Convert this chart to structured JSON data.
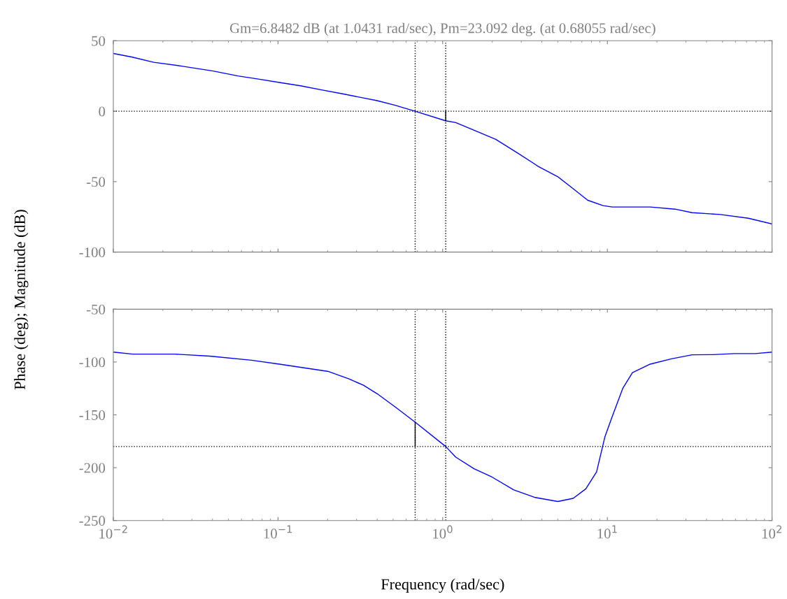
{
  "chart_data": [
    {
      "type": "line",
      "title": "Gm=6.8482 dB (at 1.0431 rad/sec), Pm=23.092 deg. (at 0.68055 rad/sec)",
      "ylabel": "Phase (deg); Magnitude (dB)",
      "log": "x",
      "xlim": [
        0.01,
        100
      ],
      "ylim": [
        -100,
        50
      ],
      "yticks": [
        -100,
        -50,
        0,
        50
      ],
      "tick_labels": "y",
      "grid": false,
      "line_style": "solid",
      "marker": "none",
      "series": [
        {
          "color": "#0000ff",
          "x": [
            0.01,
            0.0129,
            0.0176,
            0.026,
            0.0404,
            0.057,
            0.076,
            0.102,
            0.137,
            0.184,
            0.247,
            0.33,
            0.4,
            0.51,
            0.68,
            1.04,
            1.2,
            1.58,
            2.1,
            2.86,
            3.82,
            5.0,
            6.2,
            7.6,
            9.4,
            10.7,
            18.2,
            25.7,
            32.7,
            48.5,
            71.8,
            100
          ],
          "values": [
            41,
            38.5,
            34.7,
            32,
            28.5,
            25,
            22.8,
            20.4,
            18,
            15.1,
            12.3,
            9.4,
            7.5,
            4.3,
            0,
            -6.8,
            -8.1,
            -13.9,
            -20,
            -29.8,
            -39.3,
            -46.5,
            -55,
            -63.2,
            -67,
            -68,
            -68,
            -69.5,
            -72,
            -73.3,
            -76,
            -80
          ]
        },
        {
          "color": "#000000",
          "x": [
            1.0431,
            1.0431
          ],
          "values": [
            0,
            -6.8
          ]
        }
      ],
      "ref_lines": [
        {
          "axis": "y",
          "value": 0,
          "color": "#000000",
          "line_style": "dotted"
        },
        {
          "axis": "x",
          "value": 0.68055,
          "color": "#000000",
          "line_style": "dotted"
        },
        {
          "axis": "x",
          "value": 1.0431,
          "color": "#000000",
          "line_style": "dotted"
        }
      ]
    },
    {
      "type": "line",
      "xlabel": "Frequency (rad/sec)",
      "log": "x",
      "xlim": [
        0.01,
        100
      ],
      "xticks": [
        {
          "value": 0.01,
          "label": "10$^{−2}$"
        },
        {
          "value": 0.1,
          "label": "10$^{−1}$"
        },
        {
          "value": 1,
          "label": "10$^{0}$"
        },
        {
          "value": 10,
          "label": "10$^{1}$"
        },
        {
          "value": 100,
          "label": "10$^{2}$"
        }
      ],
      "ylim": [
        -250,
        -50
      ],
      "yticks": [
        -250,
        -200,
        -150,
        -100,
        -50
      ],
      "grid": false,
      "line_style": "solid",
      "marker": "none",
      "series": [
        {
          "color": "#0000ff",
          "x": [
            0.01,
            0.0131,
            0.0236,
            0.0385,
            0.069,
            0.102,
            0.137,
            0.203,
            0.27,
            0.33,
            0.4,
            0.52,
            0.68055,
            1.0431,
            1.2,
            1.55,
            2.0,
            2.7,
            3.6,
            5.0,
            6.2,
            7.4,
            8.6,
            9.67,
            10.7,
            12.4,
            14.2,
            18.2,
            24.5,
            32.7,
            44,
            59,
            79,
            100
          ],
          "values": [
            -90.6,
            -92.5,
            -92.5,
            -94.4,
            -98.3,
            -102,
            -105,
            -109,
            -116,
            -122,
            -130,
            -143,
            -156.9,
            -180,
            -190,
            -201,
            -209,
            -221,
            -228,
            -232,
            -229,
            -220,
            -204,
            -170.6,
            -151.6,
            -125,
            -110,
            -102,
            -97,
            -93.2,
            -93,
            -92,
            -92,
            -90.6
          ]
        },
        {
          "color": "#000000",
          "x": [
            0.68055,
            0.68055
          ],
          "values": [
            -180,
            -156.9
          ]
        }
      ],
      "ref_lines": [
        {
          "axis": "y",
          "value": -180,
          "color": "#000000",
          "line_style": "dotted"
        },
        {
          "axis": "x",
          "value": 0.68055,
          "color": "#000000",
          "line_style": "dotted"
        },
        {
          "axis": "x",
          "value": 1.0431,
          "color": "#000000",
          "line_style": "dotted"
        }
      ]
    }
  ]
}
